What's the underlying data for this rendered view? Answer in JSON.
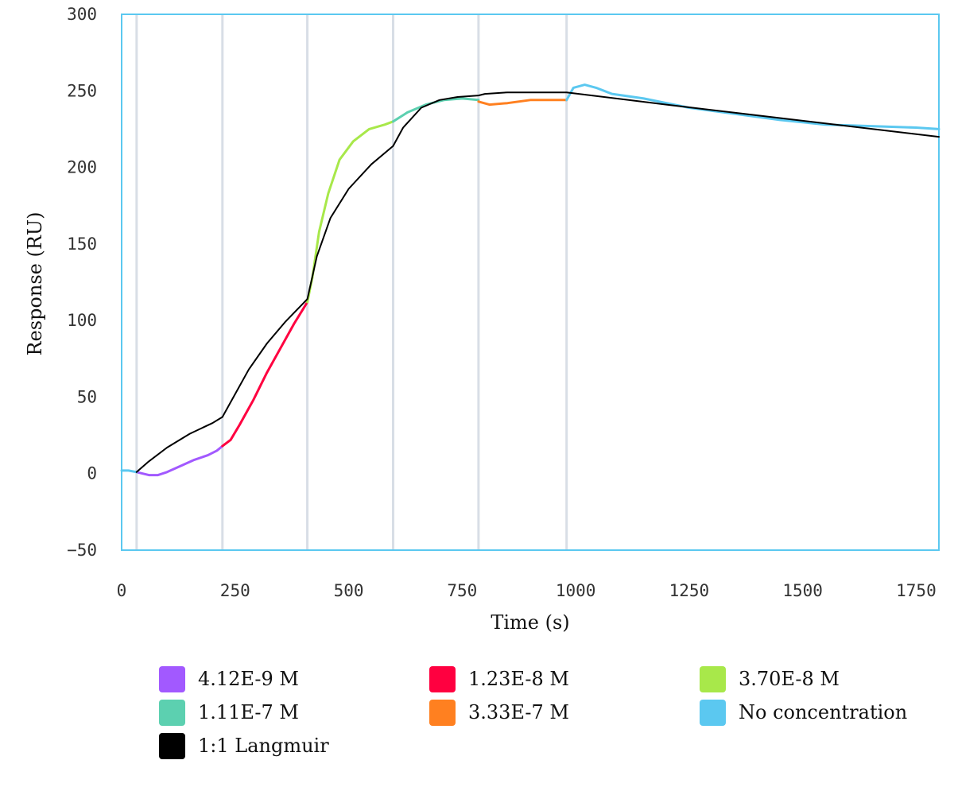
{
  "chart_data": {
    "type": "line",
    "title": "",
    "xlabel": "Time (s)",
    "ylabel": "Response (RU)",
    "xlim": [
      0,
      1800
    ],
    "ylim": [
      -50,
      300
    ],
    "x_ticks": [
      0,
      250,
      500,
      750,
      1000,
      1250,
      1500,
      1750
    ],
    "y_ticks": [
      -50,
      0,
      50,
      100,
      150,
      200,
      250,
      300
    ],
    "grid": false,
    "vertical_markers": [
      33,
      222,
      409,
      598,
      786,
      980
    ],
    "legend_position": "bottom",
    "series": [
      {
        "name": "4.12E-9 M",
        "color": "#a259ff",
        "points": [
          [
            33,
            1
          ],
          [
            60,
            -1
          ],
          [
            80,
            -1
          ],
          [
            100,
            1
          ],
          [
            130,
            5
          ],
          [
            160,
            9
          ],
          [
            190,
            12
          ],
          [
            210,
            15
          ],
          [
            222,
            18
          ]
        ]
      },
      {
        "name": "1.23E-8 M",
        "color": "#ff0040",
        "points": [
          [
            222,
            18
          ],
          [
            240,
            22
          ],
          [
            260,
            32
          ],
          [
            290,
            48
          ],
          [
            320,
            66
          ],
          [
            350,
            82
          ],
          [
            380,
            98
          ],
          [
            409,
            112
          ]
        ]
      },
      {
        "name": "3.70E-8 M",
        "color": "#a8e84a",
        "points": [
          [
            409,
            112
          ],
          [
            420,
            128
          ],
          [
            435,
            158
          ],
          [
            455,
            183
          ],
          [
            480,
            205
          ],
          [
            510,
            217
          ],
          [
            545,
            225
          ],
          [
            580,
            228
          ],
          [
            598,
            230
          ]
        ]
      },
      {
        "name": "1.11E-7 M",
        "color": "#5cd0b0",
        "points": [
          [
            598,
            230
          ],
          [
            630,
            236
          ],
          [
            670,
            241
          ],
          [
            710,
            244
          ],
          [
            750,
            245
          ],
          [
            786,
            244
          ]
        ]
      },
      {
        "name": "3.33E-7 M",
        "color": "#ff8020",
        "points": [
          [
            786,
            243
          ],
          [
            810,
            241
          ],
          [
            850,
            242
          ],
          [
            900,
            244
          ],
          [
            950,
            244
          ],
          [
            980,
            244
          ]
        ]
      },
      {
        "name": "No concentration",
        "color": "#5bc8f0",
        "segments": [
          [
            [
              0,
              2
            ],
            [
              15,
              2
            ],
            [
              33,
              1
            ]
          ],
          [
            [
              980,
              244
            ],
            [
              995,
              252
            ],
            [
              1020,
              254
            ],
            [
              1045,
              252
            ],
            [
              1080,
              248
            ],
            [
              1150,
              245
            ],
            [
              1250,
              239
            ],
            [
              1350,
              235
            ],
            [
              1450,
              231
            ],
            [
              1550,
              228
            ],
            [
              1650,
              227
            ],
            [
              1750,
              226
            ],
            [
              1800,
              225
            ]
          ]
        ]
      },
      {
        "name": "1:1 Langmuir",
        "color": "#000000",
        "points": [
          [
            33,
            1
          ],
          [
            60,
            8
          ],
          [
            100,
            17
          ],
          [
            150,
            26
          ],
          [
            200,
            33
          ],
          [
            222,
            37
          ],
          [
            250,
            52
          ],
          [
            280,
            68
          ],
          [
            320,
            85
          ],
          [
            360,
            99
          ],
          [
            409,
            114
          ],
          [
            430,
            142
          ],
          [
            460,
            167
          ],
          [
            500,
            186
          ],
          [
            550,
            202
          ],
          [
            598,
            214
          ],
          [
            620,
            226
          ],
          [
            660,
            239
          ],
          [
            700,
            244
          ],
          [
            740,
            246
          ],
          [
            786,
            247
          ],
          [
            800,
            248
          ],
          [
            850,
            249
          ],
          [
            980,
            249
          ],
          [
            1200,
            241
          ],
          [
            1400,
            234
          ],
          [
            1600,
            227
          ],
          [
            1800,
            220
          ]
        ]
      }
    ]
  }
}
